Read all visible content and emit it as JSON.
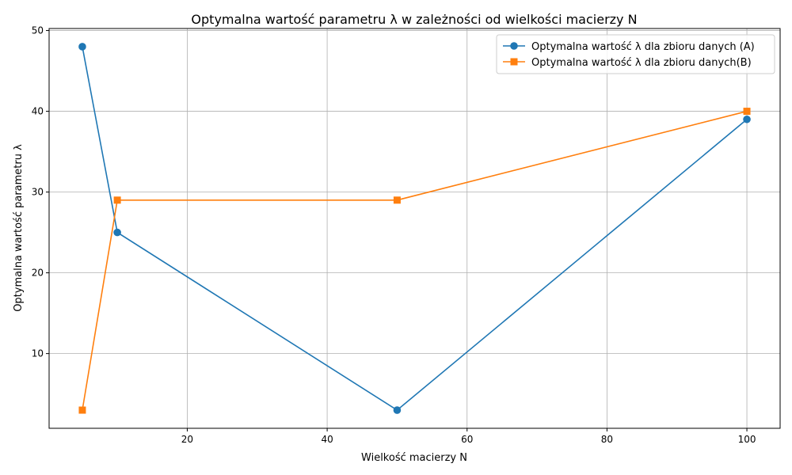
{
  "chart_data": {
    "type": "line",
    "title": "Optymalna wartość parametru λ w zależności od wielkości macierzy N",
    "xlabel": "Wielkość macierzy N",
    "ylabel": "Optymalna wartość parametru λ",
    "xlim": [
      0.25,
      104.75
    ],
    "ylim": [
      0.75,
      50.25
    ],
    "xticks": [
      20,
      40,
      60,
      80,
      100
    ],
    "yticks": [
      10,
      20,
      30,
      40,
      50
    ],
    "grid": true,
    "legend_position": "upper-right",
    "series": [
      {
        "name": "Optymalna wartość λ dla zbioru danych (A)",
        "color": "#1f77b4",
        "marker": "circle",
        "x": [
          5,
          10,
          50,
          100
        ],
        "y": [
          48,
          25,
          3,
          39
        ]
      },
      {
        "name": "Optymalna wartość λ dla zbioru danych(B)",
        "color": "#ff7f0e",
        "marker": "square",
        "x": [
          5,
          10,
          50,
          100
        ],
        "y": [
          3,
          29,
          29,
          40
        ]
      }
    ]
  }
}
